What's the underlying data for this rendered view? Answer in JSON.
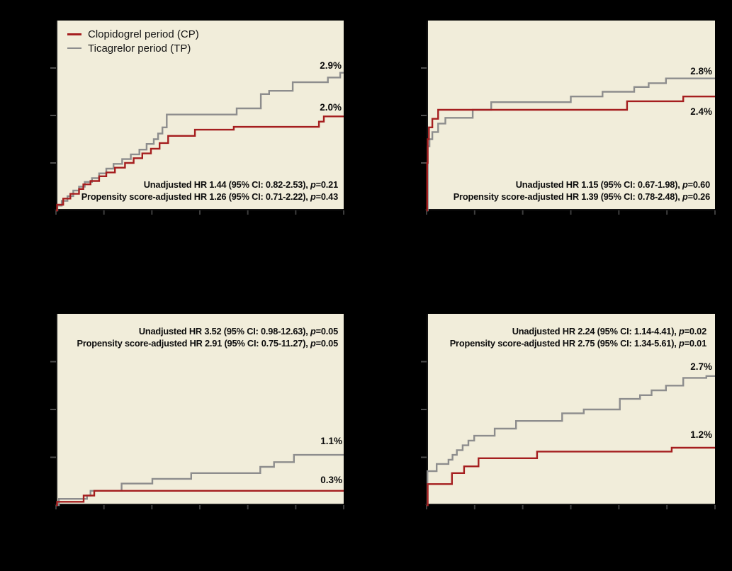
{
  "colors": {
    "background": "#000000",
    "plot_background": "#f1edda",
    "cp": "#a51e1f",
    "tp": "#8d8d8d",
    "axis": "#141414",
    "tick": "#4d4d4d",
    "tick_x": "#3d3d3d",
    "text": "#0d0d0d"
  },
  "legend": {
    "items": [
      {
        "label": "Clopidogrel period (CP)",
        "series": "cp"
      },
      {
        "label": "Ticagrelor period (TP)",
        "series": "tp"
      }
    ]
  },
  "chart_data": [
    {
      "type": "line",
      "subtype": "kaplan-meier-step",
      "panel": "top-left",
      "title": "",
      "xlabel": "",
      "ylabel": "",
      "ylim": [
        0,
        4
      ],
      "y_tick_values": [
        1,
        2,
        3
      ],
      "x_tick_count": 7,
      "grid": false,
      "legend_position": "top-left-inside",
      "series": [
        {
          "name": "Ticagrelor period (TP)",
          "color_key": "tp",
          "end_label": "2.9%",
          "points": [
            [
              0,
              0
            ],
            [
              0.005,
              0.1
            ],
            [
              0.02,
              0.2
            ],
            [
              0.04,
              0.3
            ],
            [
              0.06,
              0.42
            ],
            [
              0.08,
              0.5
            ],
            [
              0.1,
              0.6
            ],
            [
              0.125,
              0.68
            ],
            [
              0.15,
              0.78
            ],
            [
              0.175,
              0.88
            ],
            [
              0.2,
              0.98
            ],
            [
              0.23,
              1.08
            ],
            [
              0.26,
              1.18
            ],
            [
              0.29,
              1.28
            ],
            [
              0.315,
              1.4
            ],
            [
              0.34,
              1.5
            ],
            [
              0.355,
              1.62
            ],
            [
              0.37,
              1.75
            ],
            [
              0.385,
              2.02
            ],
            [
              0.628,
              2.15
            ],
            [
              0.712,
              2.45
            ],
            [
              0.741,
              2.52
            ],
            [
              0.823,
              2.7
            ],
            [
              0.945,
              2.8
            ],
            [
              0.988,
              2.9
            ]
          ]
        },
        {
          "name": "Clopidogrel period (CP)",
          "color_key": "cp",
          "end_label": "2.0%",
          "points": [
            [
              0,
              0
            ],
            [
              0.004,
              0.12
            ],
            [
              0.025,
              0.25
            ],
            [
              0.05,
              0.35
            ],
            [
              0.08,
              0.45
            ],
            [
              0.095,
              0.55
            ],
            [
              0.12,
              0.62
            ],
            [
              0.15,
              0.72
            ],
            [
              0.175,
              0.8
            ],
            [
              0.205,
              0.9
            ],
            [
              0.24,
              1.0
            ],
            [
              0.27,
              1.1
            ],
            [
              0.3,
              1.2
            ],
            [
              0.33,
              1.3
            ],
            [
              0.36,
              1.42
            ],
            [
              0.39,
              1.57
            ],
            [
              0.483,
              1.7
            ],
            [
              0.618,
              1.76
            ],
            [
              0.914,
              1.87
            ],
            [
              0.931,
              1.98
            ]
          ]
        }
      ],
      "annotations": [
        {
          "pre": "Unadjusted HR 1.44 (95% CI: 0.82-2.53), ",
          "p": "p",
          "post": "=0.21"
        },
        {
          "pre": "Propensity score-adjusted HR 1.26 (95% CI: 0.71-2.22), ",
          "p": "p",
          "post": "=0.43"
        }
      ]
    },
    {
      "type": "line",
      "subtype": "kaplan-meier-step",
      "panel": "top-right",
      "title": "",
      "xlabel": "",
      "ylabel": "",
      "ylim": [
        0,
        4
      ],
      "y_tick_values": [
        1,
        2,
        3
      ],
      "x_tick_count": 7,
      "grid": false,
      "legend_position": "none",
      "series": [
        {
          "name": "Ticagrelor period (TP)",
          "color_key": "tp",
          "end_label": "2.8%",
          "points": [
            [
              0,
              0
            ],
            [
              0.004,
              1.35
            ],
            [
              0.01,
              1.5
            ],
            [
              0.02,
              1.65
            ],
            [
              0.04,
              1.83
            ],
            [
              0.065,
              1.95
            ],
            [
              0.16,
              2.12
            ],
            [
              0.224,
              2.28
            ],
            [
              0.5,
              2.4
            ],
            [
              0.61,
              2.5
            ],
            [
              0.72,
              2.6
            ],
            [
              0.77,
              2.68
            ],
            [
              0.83,
              2.78
            ]
          ]
        },
        {
          "name": "Clopidogrel period (CP)",
          "color_key": "cp",
          "end_label": "2.4%",
          "points": [
            [
              0,
              0
            ],
            [
              0.002,
              1.0
            ],
            [
              0.004,
              1.5
            ],
            [
              0.008,
              1.75
            ],
            [
              0.02,
              1.93
            ],
            [
              0.04,
              2.12
            ],
            [
              0.695,
              2.3
            ],
            [
              0.89,
              2.4
            ]
          ]
        }
      ],
      "annotations": [
        {
          "pre": "Unadjusted HR 1.15 (95% CI: 0.67-1.98), ",
          "p": "p",
          "post": "=0.60"
        },
        {
          "pre": "Propensity score-adjusted HR 1.39 (95% CI: 0.78-2.48), ",
          "p": "p",
          "post": "=0.26"
        }
      ]
    },
    {
      "type": "line",
      "subtype": "kaplan-meier-step",
      "panel": "bottom-left",
      "title": "",
      "xlabel": "",
      "ylabel": "",
      "ylim": [
        0,
        4
      ],
      "y_tick_values": [
        1,
        2,
        3
      ],
      "x_tick_count": 7,
      "grid": false,
      "legend_position": "none",
      "series": [
        {
          "name": "Ticagrelor period (TP)",
          "color_key": "tp",
          "end_label": "1.1%",
          "points": [
            [
              0,
              0
            ],
            [
              0.01,
              0.13
            ],
            [
              0.108,
              0.2
            ],
            [
              0.12,
              0.3
            ],
            [
              0.228,
              0.45
            ],
            [
              0.335,
              0.55
            ],
            [
              0.47,
              0.67
            ],
            [
              0.71,
              0.8
            ],
            [
              0.758,
              0.9
            ],
            [
              0.827,
              1.05
            ]
          ]
        },
        {
          "name": "Clopidogrel period (CP)",
          "color_key": "cp",
          "end_label": "0.3%",
          "points": [
            [
              0,
              0
            ],
            [
              0.004,
              0.07
            ],
            [
              0.096,
              0.2
            ],
            [
              0.133,
              0.3
            ]
          ]
        }
      ],
      "annotations": [
        {
          "pre": "Unadjusted HR 3.52 (95% CI: 0.98-12.63), ",
          "p": "p",
          "post": "=0.05"
        },
        {
          "pre": "Propensity score-adjusted HR 2.91 (95% CI: 0.75-11.27), ",
          "p": "p",
          "post": "=0.05"
        }
      ]
    },
    {
      "type": "line",
      "subtype": "kaplan-meier-step",
      "panel": "bottom-right",
      "title": "",
      "xlabel": "",
      "ylabel": "",
      "ylim": [
        0,
        4
      ],
      "y_tick_values": [
        1,
        2,
        3
      ],
      "x_tick_count": 7,
      "grid": false,
      "legend_position": "none",
      "series": [
        {
          "name": "Ticagrelor period (TP)",
          "color_key": "tp",
          "end_label": "2.7%",
          "points": [
            [
              0,
              0
            ],
            [
              0.003,
              0.71
            ],
            [
              0.035,
              0.86
            ],
            [
              0.076,
              0.95
            ],
            [
              0.09,
              1.05
            ],
            [
              0.105,
              1.15
            ],
            [
              0.125,
              1.25
            ],
            [
              0.145,
              1.35
            ],
            [
              0.165,
              1.45
            ],
            [
              0.236,
              1.6
            ],
            [
              0.31,
              1.76
            ],
            [
              0.47,
              1.92
            ],
            [
              0.545,
              2.0
            ],
            [
              0.67,
              2.22
            ],
            [
              0.74,
              2.3
            ],
            [
              0.78,
              2.4
            ],
            [
              0.83,
              2.5
            ],
            [
              0.89,
              2.66
            ],
            [
              0.97,
              2.7
            ]
          ]
        },
        {
          "name": "Clopidogrel period (CP)",
          "color_key": "cp",
          "end_label": "1.2%",
          "points": [
            [
              0,
              0
            ],
            [
              0.004,
              0.44
            ],
            [
              0.088,
              0.67
            ],
            [
              0.13,
              0.81
            ],
            [
              0.18,
              0.98
            ],
            [
              0.383,
              1.12
            ],
            [
              0.85,
              1.2
            ]
          ]
        }
      ],
      "annotations": [
        {
          "pre": "Unadjusted HR 2.24 (95% CI: 1.14-4.41), ",
          "p": "p",
          "post": "=0.02"
        },
        {
          "pre": "Propensity score-adjusted HR 2.75 (95% CI: 1.34-5.61), ",
          "p": "p",
          "post": "=0.01"
        }
      ]
    }
  ]
}
